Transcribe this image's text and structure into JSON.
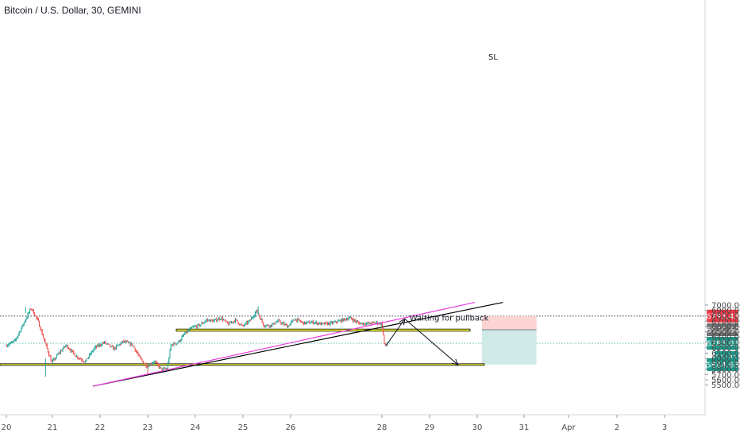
{
  "header": {
    "title": "Bitcoin / U.S. Dollar, 30, GEMINI"
  },
  "chart_data": {
    "type": "candlestick",
    "symbol": "Bitcoin / U.S. Dollar",
    "timeframe": "30",
    "exchange": "GEMINI",
    "ylim": [
      5480,
      7040
    ],
    "y_ticks": [
      "7000.00",
      "6900.00",
      "6800.00",
      "6700.00",
      "6600.00",
      "6500.00",
      "6400.00",
      "6300.00",
      "6200.00",
      "6100.00",
      "6000.00",
      "5900.00",
      "5800.00",
      "5700.00",
      "5600.00",
      "5500.00"
    ],
    "x_ticks": [
      "20",
      "21",
      "22",
      "23",
      "24",
      "25",
      "26",
      "28",
      "29",
      "30",
      "31",
      "Apr",
      "2",
      "3"
    ],
    "price_path": [
      [
        20.0,
        6240
      ],
      [
        20.2,
        6330
      ],
      [
        20.4,
        6680
      ],
      [
        20.55,
        6950
      ],
      [
        20.7,
        6700
      ],
      [
        20.85,
        6300
      ],
      [
        21.0,
        5920
      ],
      [
        21.15,
        6100
      ],
      [
        21.3,
        6250
      ],
      [
        21.5,
        6050
      ],
      [
        21.7,
        5940
      ],
      [
        21.9,
        6200
      ],
      [
        22.1,
        6300
      ],
      [
        22.3,
        6180
      ],
      [
        22.5,
        6320
      ],
      [
        22.7,
        6250
      ],
      [
        22.85,
        6000
      ],
      [
        23.0,
        5850
      ],
      [
        23.15,
        5950
      ],
      [
        23.3,
        5790
      ],
      [
        23.42,
        5810
      ],
      [
        23.5,
        6250
      ],
      [
        23.65,
        6300
      ],
      [
        23.8,
        6470
      ],
      [
        23.95,
        6580
      ],
      [
        24.1,
        6620
      ],
      [
        24.25,
        6720
      ],
      [
        24.4,
        6700
      ],
      [
        24.55,
        6760
      ],
      [
        24.7,
        6640
      ],
      [
        24.85,
        6720
      ],
      [
        25.0,
        6600
      ],
      [
        25.15,
        6700
      ],
      [
        25.3,
        6890
      ],
      [
        25.45,
        6620
      ],
      [
        25.6,
        6620
      ],
      [
        25.75,
        6700
      ],
      [
        25.95,
        6600
      ],
      [
        26.1,
        6740
      ],
      [
        26.3,
        6660
      ],
      [
        26.5,
        6680
      ],
      [
        26.7,
        6640
      ],
      [
        26.9,
        6660
      ],
      [
        27.1,
        6710
      ],
      [
        27.3,
        6760
      ],
      [
        27.5,
        6660
      ],
      [
        27.7,
        6650
      ],
      [
        27.9,
        6670
      ],
      [
        28.0,
        6650
      ],
      [
        28.03,
        6540
      ],
      [
        28.06,
        6280
      ],
      [
        28.09,
        6230
      ],
      [
        28.12,
        6285
      ]
    ],
    "price_extremes": {
      "high": 6975,
      "low": 5660
    },
    "last_price": "6285.03",
    "countdown": "11:31",
    "levels": {
      "stop_loss": "6793.43",
      "entry": "6536.64",
      "target": "5884.63"
    },
    "annotations": {
      "sl_label": "SL",
      "pullback_label": "Waiting for pullback"
    },
    "colors": {
      "up": "#26a69a",
      "down": "#ef5350",
      "zone_fill": "#ffff33",
      "stop_zone": "#fcd5d3",
      "profit_zone": "#cfeae6",
      "trend_black": "#000000",
      "trend_magenta": "#e83ce0",
      "entry_badge": "#737375",
      "target_badge": "#1b998b",
      "sl_badge": "#f23645"
    }
  }
}
